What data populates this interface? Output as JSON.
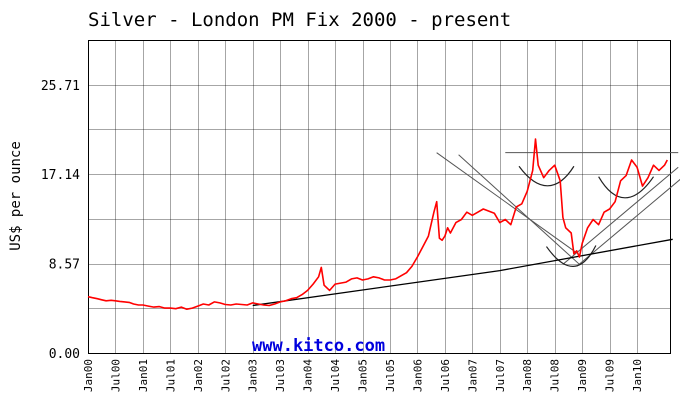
{
  "chart_data": {
    "type": "line",
    "title": "Silver - London PM Fix 2000 - present",
    "ylabel": "US$ per ounce",
    "xlabel": "",
    "watermark": "www.kitco.com",
    "x_unit": "year",
    "xlim": [
      2000.0,
      2010.6
    ],
    "ylim": [
      0.0,
      30.0
    ],
    "y_ticks": [
      0.0,
      8.57,
      17.14,
      25.71
    ],
    "y_tick_labels": [
      "0.00",
      "8.57",
      "17.14",
      "25.71"
    ],
    "x_ticks": [
      2000.0,
      2000.5,
      2001.0,
      2001.5,
      2002.0,
      2002.5,
      2003.0,
      2003.5,
      2004.0,
      2004.5,
      2005.0,
      2005.5,
      2006.0,
      2006.5,
      2007.0,
      2007.5,
      2008.0,
      2008.5,
      2009.0,
      2009.5,
      2010.0
    ],
    "x_tick_labels": [
      "Jan00",
      "Jul00",
      "Jan01",
      "Jul01",
      "Jan02",
      "Jul02",
      "Jan03",
      "Jul03",
      "Jan04",
      "Jul04",
      "Jan05",
      "Jul05",
      "Jan06",
      "Jul06",
      "Jan07",
      "Jul07",
      "Jan08",
      "Jul08",
      "Jan09",
      "Jul09",
      "Jan10"
    ],
    "grid": true,
    "colors": {
      "price": "#ff0000",
      "trendline": "#000000",
      "pattern": "#555555",
      "grid": "#000000",
      "watermark": "#0000dd"
    },
    "series": [
      {
        "x": [
          2000.0,
          2000.08,
          2000.17,
          2000.25,
          2000.33,
          2000.42,
          2000.5,
          2000.58,
          2000.67,
          2000.75,
          2000.83,
          2000.92,
          2001.0,
          2001.1,
          2001.2,
          2001.3,
          2001.4,
          2001.5,
          2001.6,
          2001.7,
          2001.8,
          2001.9,
          2002.0,
          2002.1,
          2002.2,
          2002.3,
          2002.4,
          2002.5,
          2002.6,
          2002.7,
          2002.8,
          2002.9,
          2003.0,
          2003.1,
          2003.2,
          2003.3,
          2003.4,
          2003.5,
          2003.6,
          2003.7,
          2003.8,
          2003.9,
          2004.0,
          2004.1,
          2004.2,
          2004.25,
          2004.3,
          2004.4,
          2004.5,
          2004.6,
          2004.7,
          2004.8,
          2004.9,
          2005.0,
          2005.1,
          2005.2,
          2005.3,
          2005.4,
          2005.5,
          2005.6,
          2005.7,
          2005.8,
          2005.9,
          2006.0,
          2006.1,
          2006.2,
          2006.3,
          2006.35,
          2006.4,
          2006.45,
          2006.5,
          2006.55,
          2006.6,
          2006.7,
          2006.8,
          2006.9,
          2007.0,
          2007.1,
          2007.2,
          2007.3,
          2007.4,
          2007.5,
          2007.6,
          2007.7,
          2007.8,
          2007.9,
          2008.0,
          2008.1,
          2008.15,
          2008.2,
          2008.3,
          2008.4,
          2008.5,
          2008.6,
          2008.65,
          2008.7,
          2008.8,
          2008.85,
          2008.9,
          2008.95,
          2009.0,
          2009.1,
          2009.2,
          2009.3,
          2009.4,
          2009.5,
          2009.6,
          2009.7,
          2009.8,
          2009.9,
          2010.0,
          2010.1,
          2010.2,
          2010.3,
          2010.4,
          2010.5,
          2010.55
        ],
        "y": [
          5.4,
          5.3,
          5.2,
          5.1,
          5.0,
          5.05,
          5.0,
          4.95,
          4.9,
          4.85,
          4.7,
          4.6,
          4.6,
          4.5,
          4.4,
          4.45,
          4.3,
          4.3,
          4.25,
          4.4,
          4.2,
          4.3,
          4.5,
          4.7,
          4.6,
          4.9,
          4.8,
          4.65,
          4.6,
          4.7,
          4.65,
          4.6,
          4.8,
          4.7,
          4.6,
          4.55,
          4.7,
          4.9,
          5.0,
          5.2,
          5.3,
          5.6,
          6.0,
          6.6,
          7.3,
          8.2,
          6.5,
          6.0,
          6.6,
          6.7,
          6.8,
          7.1,
          7.2,
          7.0,
          7.1,
          7.3,
          7.2,
          7.0,
          7.0,
          7.1,
          7.4,
          7.7,
          8.3,
          9.2,
          10.2,
          11.2,
          13.5,
          14.5,
          11.0,
          10.8,
          11.2,
          12.0,
          11.5,
          12.5,
          12.8,
          13.5,
          13.2,
          13.5,
          13.8,
          13.6,
          13.4,
          12.5,
          12.8,
          12.3,
          14.0,
          14.3,
          15.5,
          17.5,
          20.5,
          18.0,
          16.8,
          17.5,
          18.0,
          16.5,
          13.0,
          12.0,
          11.5,
          9.5,
          9.8,
          9.2,
          10.5,
          12.0,
          12.8,
          12.3,
          13.5,
          13.8,
          14.5,
          16.5,
          17.0,
          18.5,
          17.8,
          16.0,
          16.8,
          18.0,
          17.5,
          18.0,
          18.5
        ]
      }
    ],
    "trendlines": [
      {
        "x": [
          2003.0,
          2007.5,
          2010.65
        ],
        "y": [
          4.55,
          7.9,
          10.9
        ]
      }
    ],
    "pattern_lines": [
      {
        "x": [
          2007.6,
          2010.75
        ],
        "y": [
          19.2,
          19.2
        ]
      },
      {
        "x": [
          2006.35,
          2008.9
        ],
        "y": [
          19.2,
          9.6
        ]
      },
      {
        "x": [
          2006.75,
          2008.95
        ],
        "y": [
          19.0,
          8.5
        ]
      },
      {
        "x": [
          2008.65,
          2010.75
        ],
        "y": [
          8.5,
          17.8
        ]
      },
      {
        "x": [
          2008.9,
          2010.8
        ],
        "y": [
          8.3,
          16.7
        ]
      }
    ],
    "pattern_arcs": [
      {
        "x": [
          2007.85,
          2008.2,
          2008.55,
          2008.85
        ],
        "y": [
          17.9,
          15.4,
          15.4,
          17.9
        ]
      },
      {
        "x": [
          2008.35,
          2008.7,
          2009.0,
          2009.25
        ],
        "y": [
          10.2,
          7.6,
          7.7,
          10.3
        ]
      },
      {
        "x": [
          2009.3,
          2009.6,
          2009.95,
          2010.3
        ],
        "y": [
          16.9,
          14.2,
          14.2,
          16.9
        ]
      }
    ]
  }
}
